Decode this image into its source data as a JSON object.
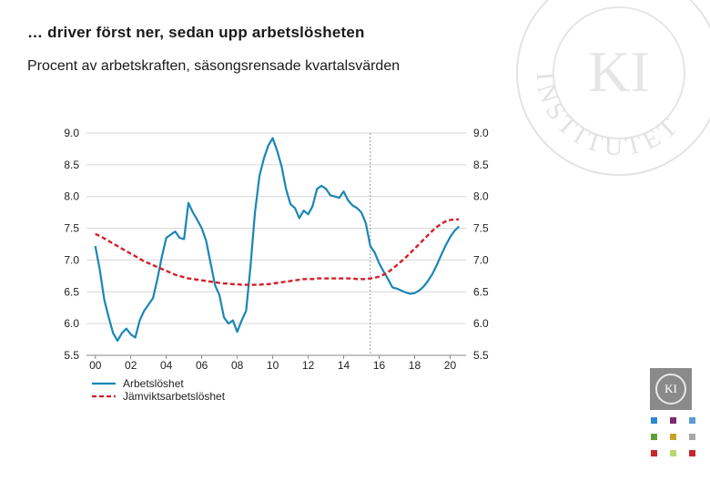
{
  "header": {
    "title": "… driver först ner, sedan upp arbetslösheten",
    "subtitle": "Procent av arbetskraften, säsongsrensade kvartalsvärden"
  },
  "watermark": {
    "ring_text": "INSTITUTET",
    "monogram": "KI"
  },
  "logo": {
    "text": "KI"
  },
  "colors": {
    "series1": "#1a86b5",
    "series2": "#d2202a",
    "grid": "#d6d6d6",
    "axis": "#888888",
    "forecast_line": "#9a9a9a",
    "logo_squares": [
      "#2e8ad1",
      "#7b2c6f",
      "#5a9bd4",
      "#5f9f3a",
      "#c9a22a",
      "#a7a7a7",
      "#c8252d",
      "#b8d86b",
      "#c8252d"
    ]
  },
  "chart_data": {
    "type": "line",
    "x_start": 2000.0,
    "x_step": 0.25,
    "xlim": [
      1999.5,
      2020.9
    ],
    "ylim": [
      5.5,
      9.0
    ],
    "yticks": [
      9.0,
      8.5,
      8.0,
      7.5,
      7.0,
      6.5,
      6.0,
      5.5
    ],
    "ytick_labels": [
      "9.0",
      "8.5",
      "8.0",
      "7.5",
      "7.0",
      "6.5",
      "6.0",
      "5.5"
    ],
    "xticks": [
      2000,
      2002,
      2004,
      2006,
      2008,
      2010,
      2012,
      2014,
      2016,
      2018,
      2020
    ],
    "xtick_labels": [
      "00",
      "02",
      "04",
      "06",
      "08",
      "10",
      "12",
      "14",
      "16",
      "18",
      "20"
    ],
    "forecast_start": 2015.5,
    "grid": "horizontal",
    "legend_position": "bottom-left",
    "series": [
      {
        "name": "Arbetslöshet",
        "style": "solid",
        "values": [
          7.22,
          6.85,
          6.38,
          6.1,
          5.85,
          5.73,
          5.85,
          5.92,
          5.83,
          5.78,
          6.05,
          6.2,
          6.3,
          6.4,
          6.7,
          7.05,
          7.35,
          7.4,
          7.45,
          7.35,
          7.33,
          7.9,
          7.75,
          7.63,
          7.5,
          7.3,
          6.95,
          6.6,
          6.45,
          6.1,
          6.0,
          6.05,
          5.87,
          6.05,
          6.2,
          6.9,
          7.75,
          8.32,
          8.6,
          8.8,
          8.92,
          8.72,
          8.48,
          8.12,
          7.88,
          7.82,
          7.66,
          7.78,
          7.72,
          7.85,
          8.12,
          8.17,
          8.12,
          8.02,
          8.0,
          7.98,
          8.08,
          7.94,
          7.86,
          7.82,
          7.75,
          7.58,
          7.22,
          7.12,
          6.95,
          6.82,
          6.7,
          6.57,
          6.55,
          6.52,
          6.49,
          6.47,
          6.48,
          6.52,
          6.58,
          6.67,
          6.78,
          6.92,
          7.08,
          7.23,
          7.36,
          7.46,
          7.53
        ]
      },
      {
        "name": "Jämviktsarbetslöshet",
        "style": "dashed",
        "values": [
          7.41,
          7.38,
          7.34,
          7.3,
          7.26,
          7.22,
          7.18,
          7.14,
          7.1,
          7.06,
          7.02,
          6.98,
          6.95,
          6.92,
          6.89,
          6.86,
          6.83,
          6.8,
          6.77,
          6.75,
          6.73,
          6.71,
          6.7,
          6.69,
          6.68,
          6.67,
          6.66,
          6.65,
          6.64,
          6.63,
          6.63,
          6.62,
          6.62,
          6.61,
          6.61,
          6.61,
          6.61,
          6.61,
          6.62,
          6.62,
          6.63,
          6.64,
          6.65,
          6.66,
          6.67,
          6.68,
          6.69,
          6.7,
          6.7,
          6.7,
          6.71,
          6.71,
          6.71,
          6.71,
          6.71,
          6.71,
          6.71,
          6.71,
          6.71,
          6.7,
          6.7,
          6.7,
          6.71,
          6.72,
          6.74,
          6.77,
          6.81,
          6.86,
          6.92,
          6.98,
          7.04,
          7.11,
          7.18,
          7.25,
          7.32,
          7.39,
          7.46,
          7.52,
          7.57,
          7.61,
          7.63,
          7.64,
          7.64
        ]
      }
    ]
  }
}
